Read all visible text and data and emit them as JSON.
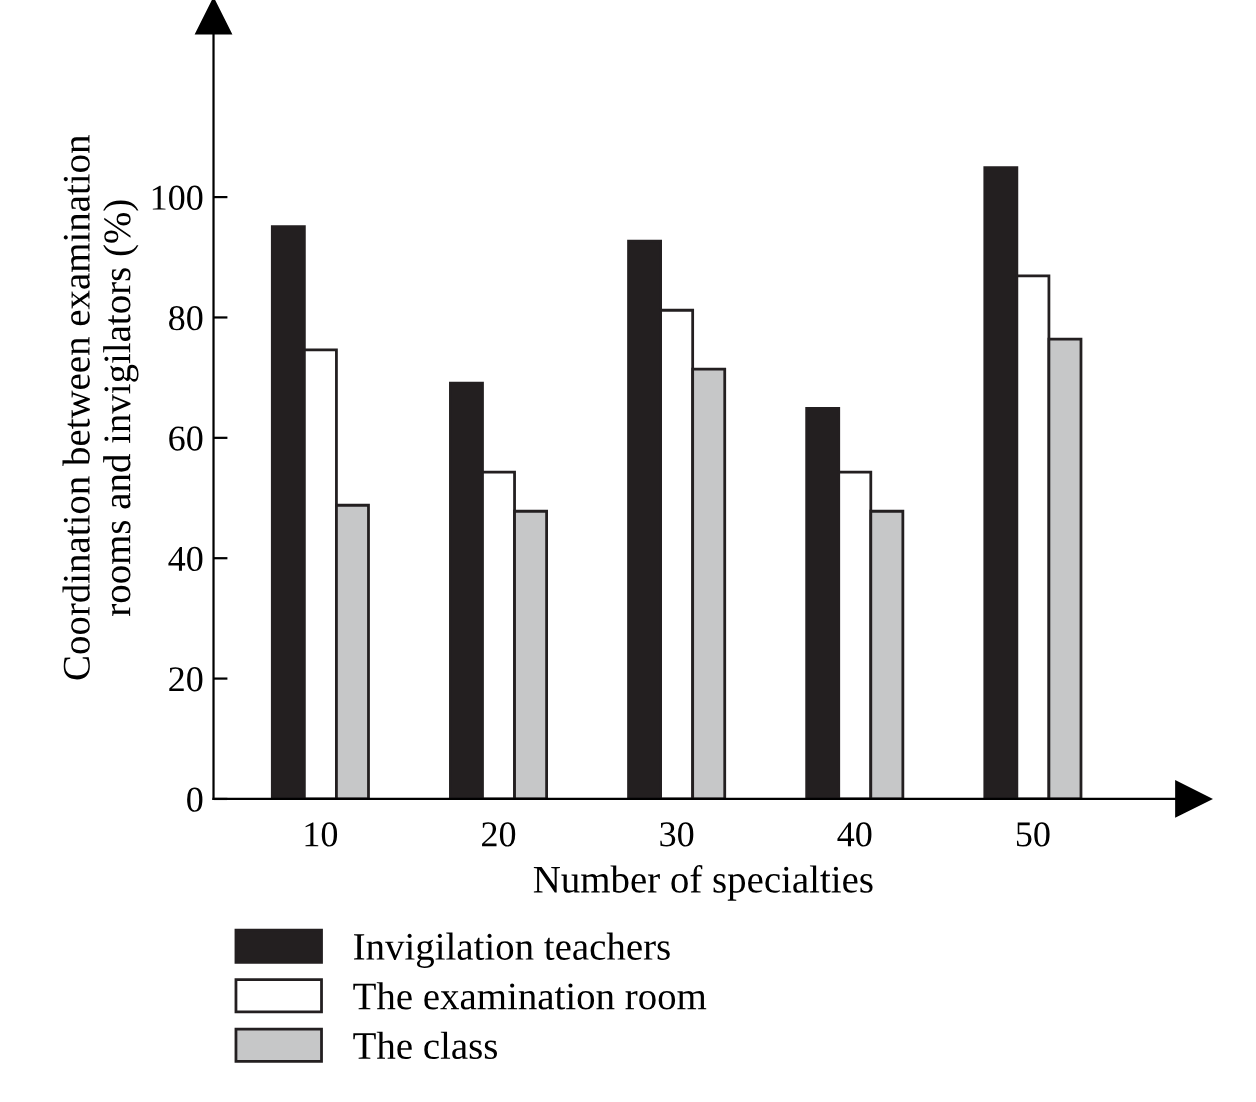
{
  "chart_data": {
    "type": "bar",
    "xlabel": "Number of specialties",
    "ylabel": "Coordination between examination\nrooms and invigilators (%)",
    "categories": [
      "10",
      "20",
      "30",
      "40",
      "50"
    ],
    "series": [
      {
        "name": "Invigilation teachers",
        "color": "#231f20",
        "values": [
          95.1,
          69.1,
          92.7,
          64.9,
          104.9
        ]
      },
      {
        "name": "The examination room",
        "color": "#ffffff",
        "values": [
          74.6,
          54.3,
          81.2,
          54.3,
          86.9
        ]
      },
      {
        "name": "The class",
        "color": "#c6c7c8",
        "values": [
          48.8,
          47.8,
          71.4,
          47.8,
          76.4
        ]
      }
    ],
    "ylim": [
      0,
      130
    ],
    "yticks": [
      0,
      20,
      40,
      60,
      80,
      100
    ],
    "grid": false,
    "legend": "bottom"
  }
}
